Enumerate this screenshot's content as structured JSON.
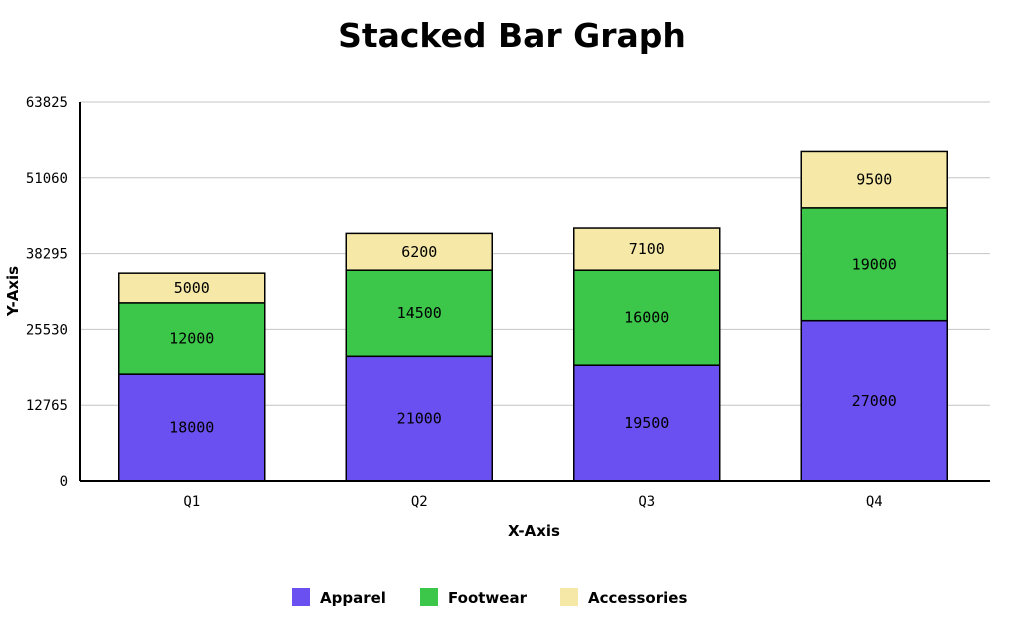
{
  "chart_data": {
    "type": "bar",
    "stacked": true,
    "title": "Stacked Bar Graph",
    "xlabel": "X-Axis",
    "ylabel": "Y-Axis",
    "categories": [
      "Q1",
      "Q2",
      "Q3",
      "Q4"
    ],
    "series": [
      {
        "name": "Apparel",
        "color": "#6a50f0",
        "values": [
          18000,
          21000,
          19500,
          27000
        ]
      },
      {
        "name": "Footwear",
        "color": "#3cc64a",
        "values": [
          12000,
          14500,
          16000,
          19000
        ]
      },
      {
        "name": "Accessories",
        "color": "#f6e9a8",
        "values": [
          5000,
          6200,
          7100,
          9500
        ]
      }
    ],
    "ylim": [
      0,
      63825
    ],
    "yticks": [
      "0",
      "12765",
      "25530",
      "38295",
      "51060",
      "63825"
    ],
    "grid": true,
    "legend_position": "bottom-center"
  }
}
